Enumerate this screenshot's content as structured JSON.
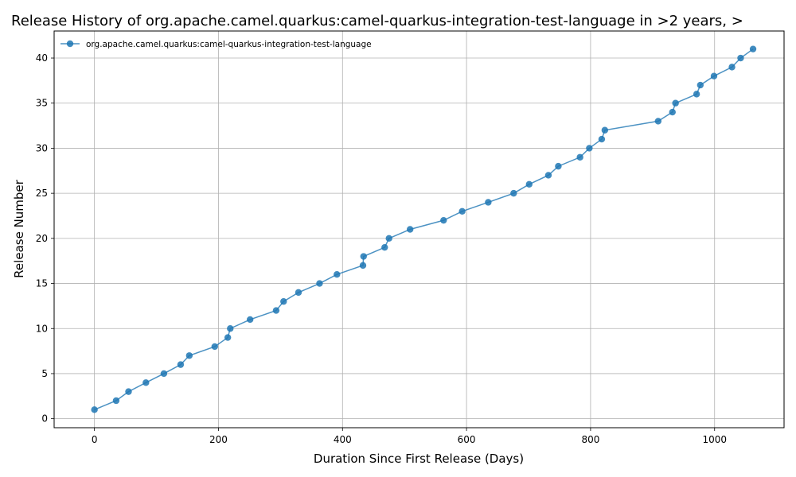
{
  "chart_data": {
    "type": "line",
    "title": "Release History of org.apache.camel.quarkus:camel-quarkus-integration-test-language in >2 years, >",
    "xlabel": "Duration Since First Release (Days)",
    "ylabel": "Release Number",
    "xlim": [
      -65,
      1112
    ],
    "ylim": [
      -1,
      43
    ],
    "xticks": [
      0,
      200,
      400,
      600,
      800,
      1000
    ],
    "yticks": [
      0,
      5,
      10,
      15,
      20,
      25,
      30,
      35,
      40
    ],
    "grid": true,
    "legend_position": "top-left",
    "series": [
      {
        "name": "org.apache.camel.quarkus:camel-quarkus-integration-test-language",
        "color": "#1f77b4",
        "marker": "circle",
        "points": [
          [
            0,
            1
          ],
          [
            35,
            2
          ],
          [
            55,
            3
          ],
          [
            83,
            4
          ],
          [
            112,
            5
          ],
          [
            139,
            6
          ],
          [
            153,
            7
          ],
          [
            194,
            8
          ],
          [
            215,
            9
          ],
          [
            219,
            10
          ],
          [
            251,
            11
          ],
          [
            293,
            12
          ],
          [
            305,
            13
          ],
          [
            329,
            14
          ],
          [
            363,
            15
          ],
          [
            391,
            16
          ],
          [
            433,
            17
          ],
          [
            434,
            18
          ],
          [
            468,
            19
          ],
          [
            475,
            20
          ],
          [
            509,
            21
          ],
          [
            563,
            22
          ],
          [
            593,
            23
          ],
          [
            635,
            24
          ],
          [
            676,
            25
          ],
          [
            701,
            26
          ],
          [
            732,
            27
          ],
          [
            748,
            28
          ],
          [
            783,
            29
          ],
          [
            798,
            30
          ],
          [
            818,
            31
          ],
          [
            823,
            32
          ],
          [
            909,
            33
          ],
          [
            932,
            34
          ],
          [
            937,
            35
          ],
          [
            971,
            36
          ],
          [
            977,
            37
          ],
          [
            999,
            38
          ],
          [
            1028,
            39
          ],
          [
            1042,
            40
          ],
          [
            1062,
            41
          ]
        ]
      }
    ]
  }
}
